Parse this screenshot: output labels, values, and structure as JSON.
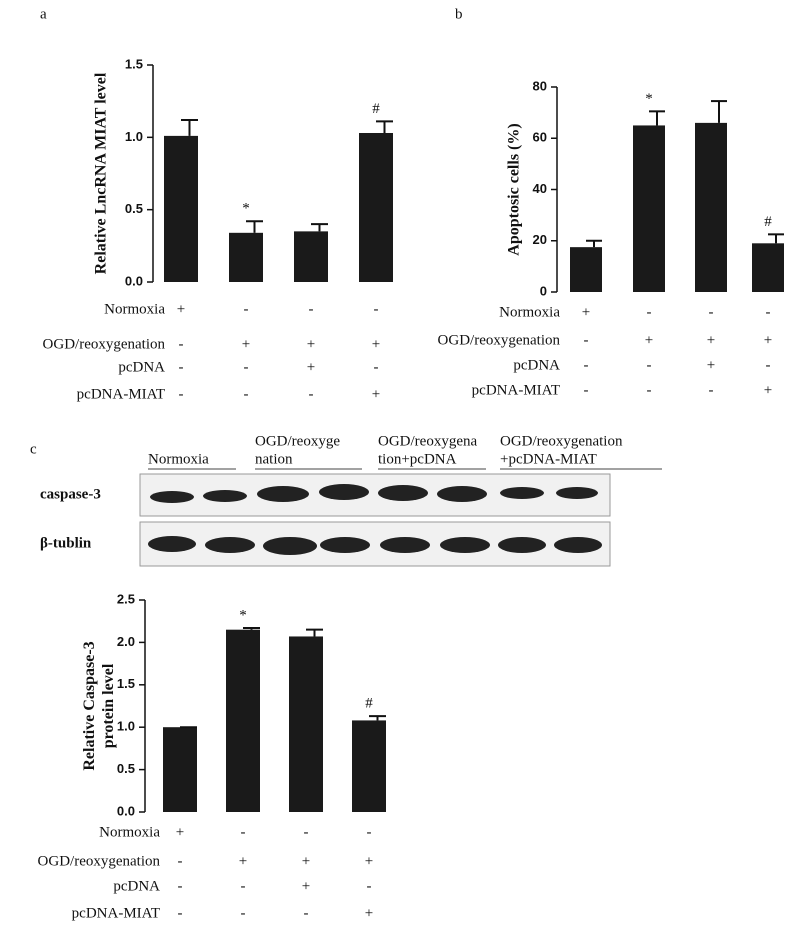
{
  "chart_data": [
    {
      "type": "bar",
      "panel": "a",
      "ylabel": [
        "Relative LncRNA MIAT level"
      ],
      "values": [
        1.01,
        0.34,
        0.35,
        1.03
      ],
      "errors": [
        0.11,
        0.08,
        0.05,
        0.08
      ],
      "annotations": [
        null,
        "*",
        null,
        "#"
      ],
      "color": "#1a1a1a",
      "ylim": [
        0,
        1.5
      ],
      "yticks": [
        {
          "value": 0,
          "label": "0.0"
        },
        0.5,
        {
          "value": 1,
          "label": "1.0"
        },
        1.5
      ],
      "conditions": [
        {
          "label": "Normoxia",
          "signs": [
            "+",
            "-",
            "-",
            "-"
          ]
        },
        {
          "label": "OGD/reoxygenation",
          "signs": [
            "-",
            "+",
            "+",
            "+"
          ]
        },
        {
          "label": "pcDNA",
          "signs": [
            "-",
            "-",
            "+",
            "-"
          ]
        },
        {
          "label": "pcDNA-MIAT",
          "signs": [
            "-",
            "-",
            "-",
            "+"
          ]
        }
      ]
    },
    {
      "type": "bar",
      "panel": "b",
      "ylabel": [
        "Apoptosic cells (%)"
      ],
      "values": [
        17.5,
        65,
        66,
        19
      ],
      "errors": [
        2.5,
        5.5,
        8.5,
        3.5
      ],
      "annotations": [
        null,
        "*",
        null,
        "#"
      ],
      "color": "#1a1a1a",
      "ylim": [
        0,
        80
      ],
      "yticks": [
        0,
        20,
        40,
        60,
        80
      ],
      "conditions": [
        {
          "label": "Normoxia",
          "signs": [
            "+",
            "-",
            "-",
            "-"
          ]
        },
        {
          "label": "OGD/reoxygenation",
          "signs": [
            "-",
            "+",
            "+",
            "+"
          ]
        },
        {
          "label": "pcDNA",
          "signs": [
            "-",
            "-",
            "+",
            "-"
          ]
        },
        {
          "label": "pcDNA-MIAT",
          "signs": [
            "-",
            "-",
            "-",
            "+"
          ]
        }
      ]
    },
    {
      "type": "bar",
      "panel": "c",
      "ylabel": [
        "Relative Caspase-3",
        "protein level"
      ],
      "values": [
        1.0,
        2.15,
        2.07,
        1.08
      ],
      "errors": [
        0,
        0.02,
        0.08,
        0.05
      ],
      "annotations": [
        null,
        "*",
        null,
        "#"
      ],
      "color": "#1a1a1a",
      "ylim": [
        0,
        2.5
      ],
      "yticks": [
        {
          "value": 0,
          "label": "0.0"
        },
        0.5,
        {
          "value": 1,
          "label": "1.0"
        },
        1.5,
        {
          "value": 2,
          "label": "2.0"
        },
        2.5
      ],
      "conditions": [
        {
          "label": "Normoxia",
          "signs": [
            "+",
            "-",
            "-",
            "-"
          ]
        },
        {
          "label": "OGD/reoxygenation",
          "signs": [
            "-",
            "+",
            "+",
            "+"
          ]
        },
        {
          "label": "pcDNA",
          "signs": [
            "-",
            "-",
            "+",
            "-"
          ]
        },
        {
          "label": "pcDNA-MIAT",
          "signs": [
            "-",
            "-",
            "-",
            "+"
          ]
        }
      ]
    }
  ],
  "blot": {
    "lanes": [
      [
        "Normoxia"
      ],
      [
        "OGD/reoxyge",
        "nation"
      ],
      [
        "OGD/reoxygena",
        "tion+pcDNA"
      ],
      [
        "OGD/reoxygenation",
        "+pcDNA-MIAT"
      ]
    ],
    "rows": [
      "caspase-3",
      "β-tublin"
    ]
  }
}
